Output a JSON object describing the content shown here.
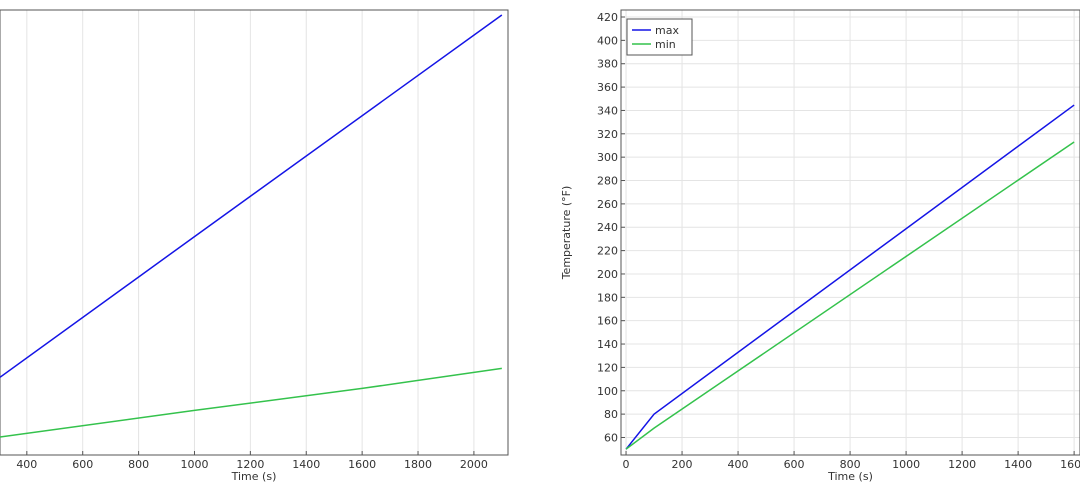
{
  "chart_data": [
    {
      "type": "line",
      "x_label": "Time (s)",
      "xlim": [
        304,
        2122
      ],
      "ylim": [
        45,
        426
      ],
      "xticks": [
        400,
        600,
        800,
        1000,
        1200,
        1400,
        1600,
        1800,
        2000
      ],
      "grid": true,
      "series": [
        {
          "color": "#1414e6",
          "x": [
            304,
            1000,
            2100
          ],
          "values": [
            111.5,
            232,
            421.7
          ]
        },
        {
          "color": "#34c24c",
          "x": [
            304,
            1000,
            1600,
            2100
          ],
          "values": [
            60.4,
            83.2,
            102,
            119.2
          ]
        }
      ]
    },
    {
      "type": "line",
      "x_label": "Time (s)",
      "y_label": "Temperature (°F)",
      "xlim": [
        -18,
        1621
      ],
      "ylim": [
        45,
        426
      ],
      "xticks": [
        0,
        200,
        400,
        600,
        800,
        1000,
        1200,
        1400,
        1600
      ],
      "yticks": [
        60,
        80,
        100,
        120,
        140,
        160,
        180,
        200,
        220,
        240,
        260,
        280,
        300,
        320,
        340,
        360,
        380,
        400,
        420
      ],
      "grid": true,
      "legend": "upper-left",
      "series": [
        {
          "name": "max",
          "color": "#1414e6",
          "x": [
            0,
            100,
            1600
          ],
          "values": [
            50,
            80,
            344.6
          ]
        },
        {
          "name": "min",
          "color": "#34c24c",
          "x": [
            0,
            100,
            1600
          ],
          "values": [
            50,
            68,
            313
          ]
        }
      ]
    }
  ]
}
